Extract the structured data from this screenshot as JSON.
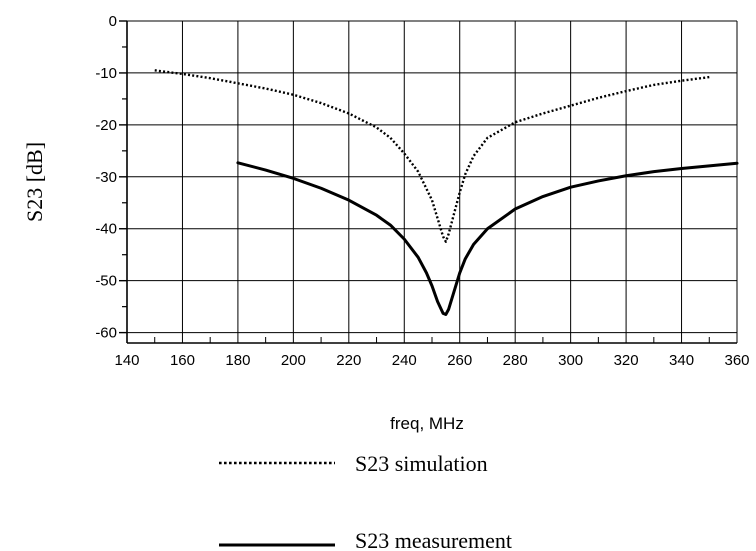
{
  "chart_data": {
    "type": "line",
    "xlabel": "freq, MHz",
    "ylabel": "S23 [dB]",
    "xlim": [
      140,
      360
    ],
    "ylim": [
      -62,
      0
    ],
    "xticks": [
      "140",
      "160",
      "180",
      "200",
      "220",
      "240",
      "260",
      "280",
      "300",
      "320",
      "340",
      "360"
    ],
    "yticks": [
      "0",
      "-10",
      "-20",
      "-30",
      "-40",
      "-50",
      "-60"
    ],
    "grid": true,
    "legend_position": "bottom-center",
    "series": [
      {
        "name": "S23 simulation",
        "style": "dotted",
        "color": "#000000",
        "x": [
          150,
          160,
          170,
          180,
          190,
          200,
          210,
          220,
          230,
          235,
          240,
          245,
          250,
          252,
          254,
          255,
          256,
          258,
          260,
          262,
          265,
          270,
          275,
          280,
          290,
          300,
          310,
          320,
          330,
          340,
          350
        ],
        "y": [
          -9.5,
          -10.2,
          -11,
          -12,
          -13,
          -14.2,
          -15.8,
          -17.8,
          -20.5,
          -22.5,
          -25.5,
          -29,
          -34.5,
          -38,
          -41.5,
          -42.5,
          -41,
          -37,
          -33,
          -29.5,
          -26,
          -22.5,
          -21,
          -19.5,
          -17.8,
          -16.3,
          -14.8,
          -13.5,
          -12.3,
          -11.5,
          -10.8
        ]
      },
      {
        "name": "S23 measurement",
        "style": "solid",
        "color": "#000000",
        "x": [
          180,
          190,
          200,
          210,
          220,
          230,
          235,
          240,
          245,
          248,
          250,
          252,
          254,
          255,
          256,
          258,
          260,
          262,
          265,
          270,
          280,
          290,
          300,
          310,
          320,
          330,
          340,
          350,
          360
        ],
        "y": [
          -27.3,
          -28.7,
          -30.3,
          -32.2,
          -34.5,
          -37.4,
          -39.3,
          -42,
          -45.5,
          -48.5,
          -51,
          -54,
          -56.3,
          -56.5,
          -55.5,
          -52,
          -48.5,
          -45.8,
          -43,
          -40,
          -36.2,
          -33.8,
          -32,
          -30.8,
          -29.8,
          -29,
          -28.4,
          -27.9,
          -27.4
        ]
      }
    ]
  }
}
